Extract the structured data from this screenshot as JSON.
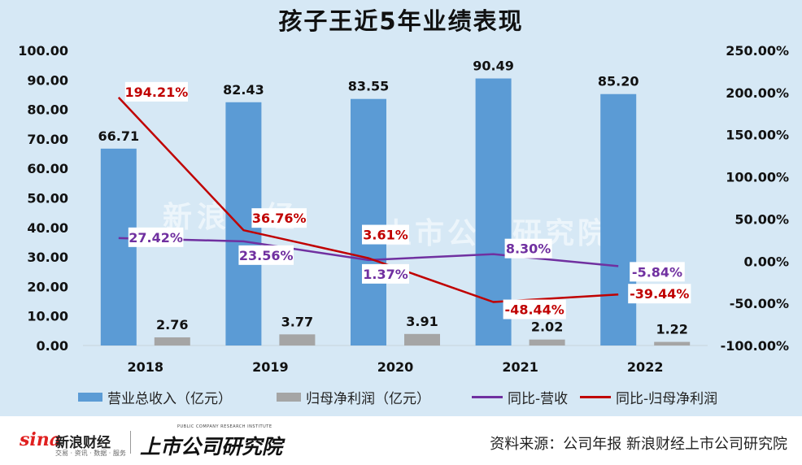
{
  "title": "孩子王近5年业绩表现",
  "source_text": "资料来源：公司年报 新浪财经上市公司研究院",
  "logos": {
    "sina_mark": "sina",
    "sina_cn": "新浪财经",
    "sina_sub": "交易 · 资讯 · 数据 · 服务",
    "ss_en": "PUBLIC COMPANY RESEARCH INSTITUTE",
    "ss_cn": "上市公司研究院"
  },
  "watermark": {
    "left": "新浪财经",
    "right": "上市公司研究院"
  },
  "colors": {
    "background": "#d6e8f5",
    "revenue_bar": "#5b9bd5",
    "profit_bar": "#a5a5a5",
    "revenue_yoy_line": "#7030a0",
    "profit_yoy_line": "#c00000"
  },
  "chart_data": {
    "type": "bar",
    "title": "孩子王近5年业绩表现",
    "categories": [
      "2018",
      "2019",
      "2020",
      "2021",
      "2022"
    ],
    "series": [
      {
        "name": "营业总收入（亿元）",
        "type": "bar",
        "axis": "left",
        "values": [
          66.71,
          82.43,
          83.55,
          90.49,
          85.2
        ],
        "labels": [
          "66.71",
          "82.43",
          "83.55",
          "90.49",
          "85.20"
        ]
      },
      {
        "name": "归母净利润（亿元）",
        "type": "bar",
        "axis": "left",
        "values": [
          2.76,
          3.77,
          3.91,
          2.02,
          1.22
        ],
        "labels": [
          "2.76",
          "3.77",
          "3.91",
          "2.02",
          "1.22"
        ]
      },
      {
        "name": "同比-营收",
        "type": "line",
        "axis": "right",
        "values": [
          27.42,
          23.56,
          1.37,
          8.3,
          -5.84
        ],
        "labels": [
          "27.42%",
          "23.56%",
          "1.37%",
          "8.30%",
          "-5.84%"
        ]
      },
      {
        "name": "同比-归母净利润",
        "type": "line",
        "axis": "right",
        "values": [
          194.21,
          36.76,
          3.61,
          -48.44,
          -39.44
        ],
        "labels": [
          "194.21%",
          "36.76%",
          "3.61%",
          "-48.44%",
          "-39.44%"
        ]
      }
    ],
    "y_left": {
      "ylim": [
        0,
        100
      ],
      "ticks": [
        "0.00",
        "10.00",
        "20.00",
        "30.00",
        "40.00",
        "50.00",
        "60.00",
        "70.00",
        "80.00",
        "90.00",
        "100.00"
      ]
    },
    "y_right": {
      "ylim": [
        -100,
        250
      ],
      "ticks": [
        "-100.00%",
        "-50.00%",
        "0.00%",
        "50.00%",
        "100.00%",
        "150.00%",
        "200.00%",
        "250.00%"
      ]
    },
    "grid": false,
    "legend": "bottom"
  }
}
